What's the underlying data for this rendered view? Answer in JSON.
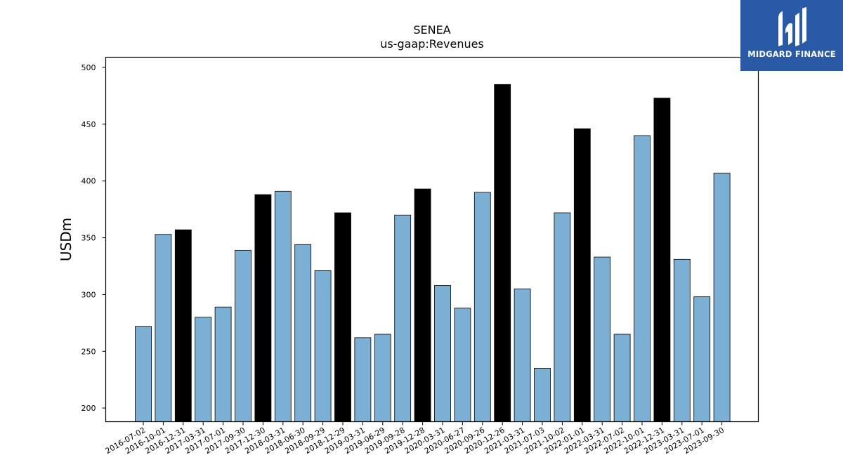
{
  "brand": {
    "name": "MIDGARD FINANCE",
    "color": "#2a5aa6",
    "icon": "midgard-logo-icon"
  },
  "chart_data": {
    "type": "bar",
    "title": "SENEA",
    "subtitle": "us-gaap:Revenues",
    "ylabel": "USDm",
    "xlabel": "",
    "ylim": [
      188,
      509
    ],
    "yticks": [
      200,
      250,
      300,
      350,
      400,
      450,
      500
    ],
    "grid": false,
    "colors": {
      "default": "#7bafd4",
      "highlight": "#000000",
      "edge": "#000000"
    },
    "categories": [
      "2016-07-02",
      "2016-10-01",
      "2016-12-31",
      "2017-03-31",
      "2017-07-01",
      "2017-09-30",
      "2017-12-30",
      "2018-03-31",
      "2018-06-30",
      "2018-09-29",
      "2018-12-29",
      "2019-03-31",
      "2019-06-29",
      "2019-09-28",
      "2019-12-28",
      "2020-03-31",
      "2020-06-27",
      "2020-09-26",
      "2020-12-26",
      "2021-03-31",
      "2021-07-03",
      "2021-10-02",
      "2022-01-01",
      "2022-03-31",
      "2022-07-02",
      "2022-10-01",
      "2022-12-31",
      "2023-03-31",
      "2023-07-01",
      "2023-09-30"
    ],
    "values": [
      272,
      353,
      357,
      280,
      289,
      339,
      388,
      391,
      344,
      321,
      372,
      262,
      265,
      370,
      393,
      308,
      288,
      390,
      485,
      305,
      235,
      372,
      446,
      333,
      265,
      440,
      473,
      331,
      298,
      407
    ],
    "highlighted": [
      false,
      false,
      true,
      false,
      false,
      false,
      true,
      false,
      false,
      false,
      true,
      false,
      false,
      false,
      true,
      false,
      false,
      false,
      true,
      false,
      false,
      false,
      true,
      false,
      false,
      false,
      true,
      false,
      false,
      false
    ]
  }
}
